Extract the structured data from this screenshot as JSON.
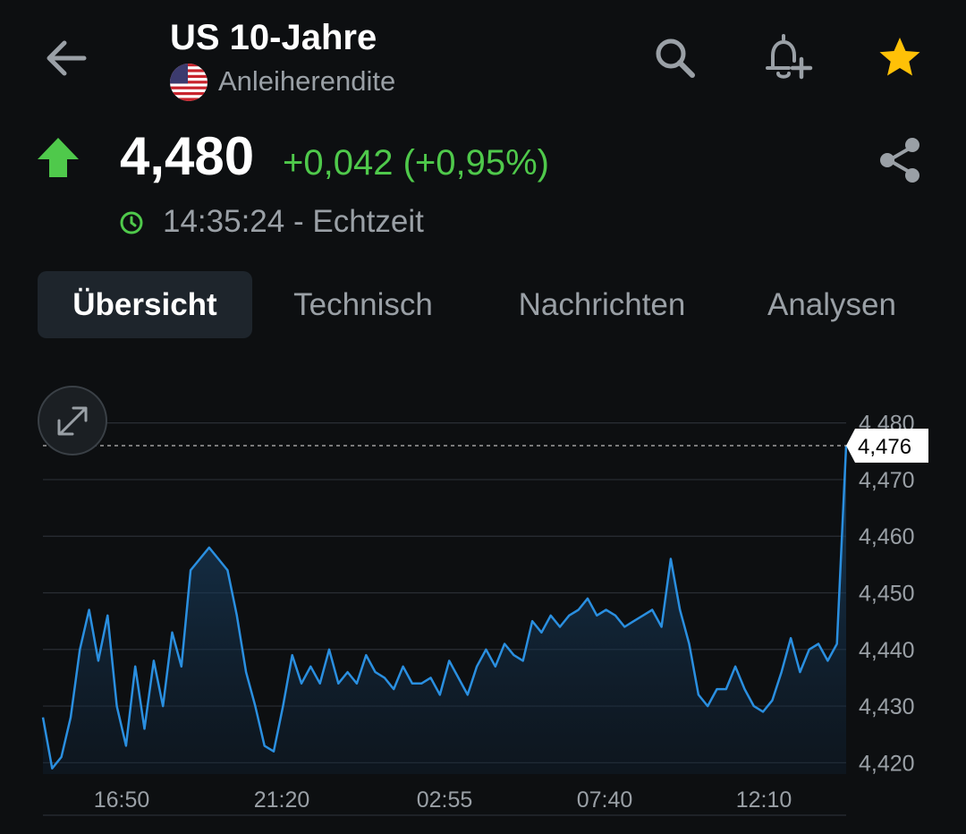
{
  "header": {
    "title": "US 10-Jahre",
    "subtitle": "Anleiherendite",
    "icons": [
      "back-arrow-icon",
      "search-icon",
      "add-alert-bell-icon",
      "star-icon",
      "us-flag-icon"
    ],
    "star_color": "#ffc107"
  },
  "quote": {
    "price": "4,480",
    "change": "+0,042 (+0,95%)",
    "timestamp": "14:35:24 - Echtzeit",
    "direction": "up",
    "up_color": "#4fc94b"
  },
  "tabs": [
    {
      "label": "Übersicht",
      "active": true
    },
    {
      "label": "Technisch",
      "active": false
    },
    {
      "label": "Nachrichten",
      "active": false
    },
    {
      "label": "Analysen",
      "active": false
    }
  ],
  "chart_data": {
    "type": "area",
    "title": "",
    "xlabel": "",
    "ylabel": "",
    "x_ticks": [
      "16:50",
      "21:20",
      "02:55",
      "07:40",
      "12:10"
    ],
    "y_ticks": [
      "4,420",
      "4,430",
      "4,440",
      "4,450",
      "4,460",
      "4,470",
      "4,480"
    ],
    "ylim": [
      4.418,
      4.482
    ],
    "current_value_label": "4,476",
    "current_value": 4.476,
    "line_color": "#2a8fe0",
    "series": [
      {
        "values": [
          4.428,
          4.419,
          4.421,
          4.428,
          4.44,
          4.447,
          4.438,
          4.446,
          4.43,
          4.423,
          4.437,
          4.426,
          4.438,
          4.43,
          4.443,
          4.437,
          4.454,
          4.456,
          4.458,
          4.456,
          4.454,
          4.446,
          4.436,
          4.43,
          4.423,
          4.422,
          4.43,
          4.439,
          4.434,
          4.437,
          4.434,
          4.44,
          4.434,
          4.436,
          4.434,
          4.439,
          4.436,
          4.435,
          4.433,
          4.437,
          4.434,
          4.434,
          4.435,
          4.432,
          4.438,
          4.435,
          4.432,
          4.437,
          4.44,
          4.437,
          4.441,
          4.439,
          4.438,
          4.445,
          4.443,
          4.446,
          4.444,
          4.446,
          4.447,
          4.449,
          4.446,
          4.447,
          4.446,
          4.444,
          4.445,
          4.446,
          4.447,
          4.444,
          4.456,
          4.447,
          4.441,
          4.432,
          4.43,
          4.433,
          4.433,
          4.437,
          4.433,
          4.43,
          4.429,
          4.431,
          4.436,
          4.442,
          4.436,
          4.44,
          4.441,
          4.438,
          4.441,
          4.476
        ]
      }
    ]
  },
  "chart_controls": {
    "expand_icon": "expand-arrows-icon"
  }
}
